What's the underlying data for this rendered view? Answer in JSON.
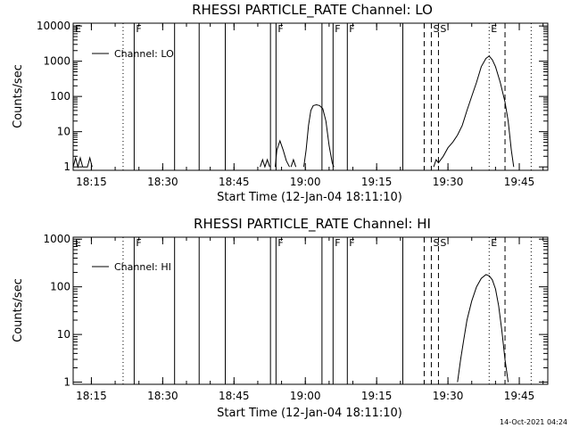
{
  "footer": {
    "timestamp": "14-Oct-2021 04:24"
  },
  "chart_data": [
    {
      "type": "line",
      "title": "RHESSI PARTICLE_RATE Channel: LO",
      "xlabel": "Start Time (12-Jan-04 18:11:10)",
      "ylabel": "Counts/sec",
      "legend": "Channel: LO",
      "legend_placement": "top-left",
      "yscale": "log",
      "xlim": [
        "18:11:10",
        "19:51:00"
      ],
      "ylim": [
        0.8,
        12000
      ],
      "x_ticks": [
        "18:15",
        "18:30",
        "18:45",
        "19:00",
        "19:15",
        "19:30",
        "19:45"
      ],
      "y_ticks": [
        "1",
        "10",
        "100",
        "1000",
        "10000"
      ],
      "markers": [
        {
          "time": "18:11:10",
          "style": "dotted",
          "label": "E"
        },
        {
          "time": "18:21:40",
          "style": "dotted",
          "label": ""
        },
        {
          "time": "18:24:00",
          "style": "solid",
          "label": "F"
        },
        {
          "time": "18:32:30",
          "style": "solid",
          "label": ""
        },
        {
          "time": "18:37:40",
          "style": "solid",
          "label": ""
        },
        {
          "time": "18:43:10",
          "style": "solid",
          "label": ""
        },
        {
          "time": "18:52:40",
          "style": "solid",
          "label": ""
        },
        {
          "time": "18:53:50",
          "style": "solid",
          "label": "F"
        },
        {
          "time": "19:03:30",
          "style": "solid",
          "label": ""
        },
        {
          "time": "19:05:50",
          "style": "solid",
          "label": "F"
        },
        {
          "time": "19:08:50",
          "style": "solid",
          "label": "F"
        },
        {
          "time": "19:20:30",
          "style": "solid",
          "label": ""
        },
        {
          "time": "19:25:00",
          "style": "dashed",
          "label": ""
        },
        {
          "time": "19:26:30",
          "style": "dashed",
          "label": "S"
        },
        {
          "time": "19:28:00",
          "style": "dashed",
          "label": "S"
        },
        {
          "time": "19:38:40",
          "style": "dotted",
          "label": "E"
        },
        {
          "time": "19:42:00",
          "style": "dashed",
          "label": ""
        },
        {
          "time": "19:47:30",
          "style": "dotted",
          "label": ""
        }
      ],
      "series": [
        {
          "name": "Channel: LO",
          "segments": [
            [
              [
                "18:11:10",
                1
              ],
              [
                "18:11:40",
                1.8
              ],
              [
                "18:12:10",
                1
              ],
              [
                "18:12:40",
                1.8
              ],
              [
                "18:13:10",
                1
              ],
              [
                "18:14:10",
                1
              ],
              [
                "18:14:40",
                1.8
              ],
              [
                "18:15:10",
                1
              ]
            ],
            [
              [
                "18:50:30",
                1
              ],
              [
                "18:51:00",
                1.6
              ],
              [
                "18:51:30",
                1
              ],
              [
                "18:52:00",
                1.6
              ],
              [
                "18:52:30",
                1
              ]
            ],
            [
              [
                "18:53:40",
                1
              ],
              [
                "18:54:00",
                3
              ],
              [
                "18:54:40",
                5.5
              ],
              [
                "18:55:20",
                3
              ],
              [
                "18:56:00",
                1.5
              ],
              [
                "18:56:40",
                1
              ]
            ],
            [
              [
                "18:57:00",
                1
              ],
              [
                "18:57:30",
                1.6
              ],
              [
                "18:58:00",
                1
              ]
            ],
            [
              [
                "18:59:40",
                1
              ],
              [
                "19:00:10",
                3
              ],
              [
                "19:00:40",
                15
              ],
              [
                "19:01:10",
                40
              ],
              [
                "19:01:40",
                55
              ],
              [
                "19:02:20",
                58
              ],
              [
                "19:03:00",
                55
              ],
              [
                "19:03:40",
                45
              ],
              [
                "19:04:20",
                20
              ],
              [
                "19:05:00",
                4
              ],
              [
                "19:05:40",
                1.3
              ],
              [
                "19:06:00",
                1
              ]
            ],
            [
              [
                "19:27:00",
                1
              ],
              [
                "19:27:30",
                1.6
              ],
              [
                "19:28:00",
                1.3
              ],
              [
                "19:29:00",
                2
              ],
              [
                "19:30:00",
                3.5
              ],
              [
                "19:31:00",
                5
              ],
              [
                "19:32:00",
                8
              ],
              [
                "19:33:00",
                15
              ],
              [
                "19:34:00",
                40
              ],
              [
                "19:35:00",
                100
              ],
              [
                "19:36:00",
                250
              ],
              [
                "19:37:00",
                700
              ],
              [
                "19:38:00",
                1200
              ],
              [
                "19:38:40",
                1400
              ],
              [
                "19:39:20",
                1100
              ],
              [
                "19:40:00",
                700
              ],
              [
                "19:41:00",
                250
              ],
              [
                "19:42:00",
                70
              ],
              [
                "19:42:40",
                20
              ],
              [
                "19:43:20",
                3
              ],
              [
                "19:43:50",
                1
              ]
            ]
          ]
        }
      ]
    },
    {
      "type": "line",
      "title": "RHESSI PARTICLE_RATE Channel: HI",
      "xlabel": "Start Time (12-Jan-04 18:11:10)",
      "ylabel": "Counts/sec",
      "legend": "Channel: HI",
      "legend_placement": "top-left",
      "yscale": "log",
      "xlim": [
        "18:11:10",
        "19:51:00"
      ],
      "ylim": [
        0.9,
        1100
      ],
      "x_ticks": [
        "18:15",
        "18:30",
        "18:45",
        "19:00",
        "19:15",
        "19:30",
        "19:45"
      ],
      "y_ticks": [
        "1",
        "10",
        "100",
        "1000"
      ],
      "markers": [
        {
          "time": "18:11:10",
          "style": "dotted",
          "label": "E"
        },
        {
          "time": "18:21:40",
          "style": "dotted",
          "label": ""
        },
        {
          "time": "18:24:00",
          "style": "solid",
          "label": "F"
        },
        {
          "time": "18:32:30",
          "style": "solid",
          "label": ""
        },
        {
          "time": "18:37:40",
          "style": "solid",
          "label": ""
        },
        {
          "time": "18:43:10",
          "style": "solid",
          "label": ""
        },
        {
          "time": "18:52:40",
          "style": "solid",
          "label": ""
        },
        {
          "time": "18:53:50",
          "style": "solid",
          "label": "F"
        },
        {
          "time": "19:03:30",
          "style": "solid",
          "label": ""
        },
        {
          "time": "19:05:50",
          "style": "solid",
          "label": "F"
        },
        {
          "time": "19:08:50",
          "style": "solid",
          "label": "F"
        },
        {
          "time": "19:20:30",
          "style": "solid",
          "label": ""
        },
        {
          "time": "19:25:00",
          "style": "dashed",
          "label": ""
        },
        {
          "time": "19:26:30",
          "style": "dashed",
          "label": "S"
        },
        {
          "time": "19:28:00",
          "style": "dashed",
          "label": "S"
        },
        {
          "time": "19:38:40",
          "style": "dotted",
          "label": "E"
        },
        {
          "time": "19:42:00",
          "style": "dashed",
          "label": ""
        },
        {
          "time": "19:47:30",
          "style": "dotted",
          "label": ""
        }
      ],
      "series": [
        {
          "name": "Channel: HI",
          "segments": [
            [
              [
                "19:32:00",
                1
              ],
              [
                "19:32:40",
                3
              ],
              [
                "19:33:20",
                8
              ],
              [
                "19:34:00",
                20
              ],
              [
                "19:35:00",
                50
              ],
              [
                "19:36:00",
                100
              ],
              [
                "19:37:00",
                150
              ],
              [
                "19:38:00",
                180
              ],
              [
                "19:38:40",
                170
              ],
              [
                "19:39:20",
                140
              ],
              [
                "19:40:00",
                90
              ],
              [
                "19:40:40",
                40
              ],
              [
                "19:41:20",
                12
              ],
              [
                "19:42:00",
                3
              ],
              [
                "19:42:40",
                1
              ]
            ]
          ]
        }
      ]
    }
  ]
}
